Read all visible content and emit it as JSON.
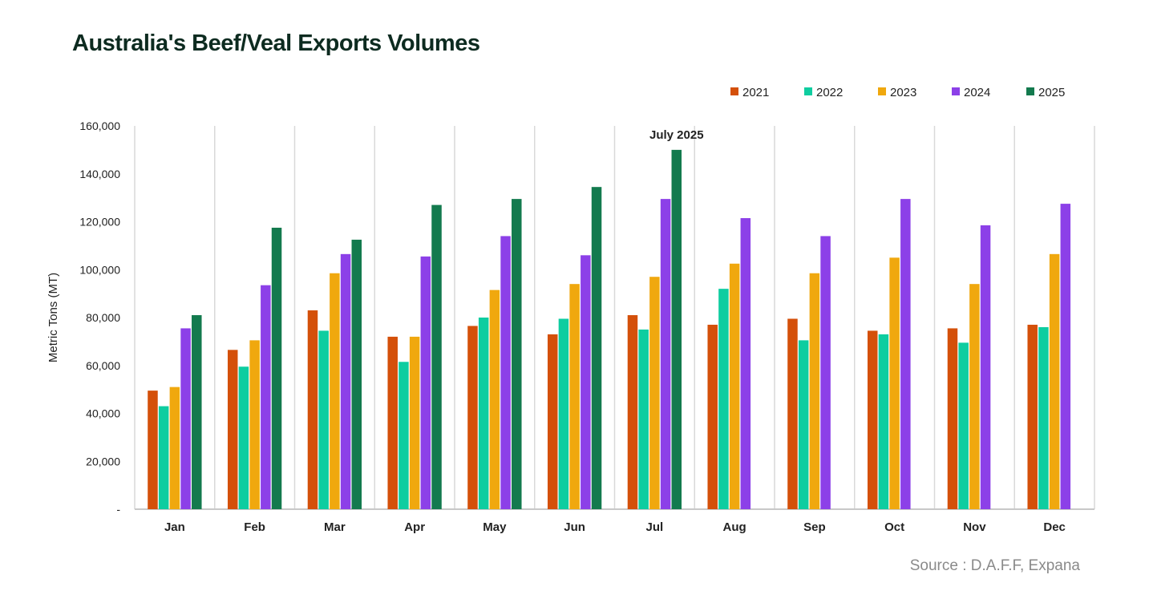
{
  "chart_data": {
    "type": "bar",
    "title": "Australia's Beef/Veal Exports Volumes",
    "ylabel": "Metric Tons (MT)",
    "xlabel": "",
    "ylim": [
      0,
      160000
    ],
    "yticks": [
      0,
      20000,
      40000,
      60000,
      80000,
      100000,
      120000,
      140000,
      160000
    ],
    "ytick_labels": [
      "-",
      "20,000",
      "40,000",
      "60,000",
      "80,000",
      "100,000",
      "120,000",
      "140,000",
      "160,000"
    ],
    "categories": [
      "Jan",
      "Feb",
      "Mar",
      "Apr",
      "May",
      "Jun",
      "Jul",
      "Aug",
      "Sep",
      "Oct",
      "Nov",
      "Dec"
    ],
    "series": [
      {
        "name": "2021",
        "color": "#d4500a",
        "values": [
          49500,
          66500,
          83000,
          72000,
          76500,
          73000,
          81000,
          77000,
          79500,
          74500,
          75500,
          77000
        ]
      },
      {
        "name": "2022",
        "color": "#0ecda0",
        "values": [
          43000,
          59500,
          74500,
          61500,
          80000,
          79500,
          75000,
          92000,
          70500,
          73000,
          69500,
          76000
        ]
      },
      {
        "name": "2023",
        "color": "#f0a80e",
        "values": [
          51000,
          70500,
          98500,
          72000,
          91500,
          94000,
          97000,
          102500,
          98500,
          105000,
          94000,
          106500
        ]
      },
      {
        "name": "2024",
        "color": "#8c40e8",
        "values": [
          75500,
          93500,
          106500,
          105500,
          114000,
          106000,
          129500,
          121500,
          114000,
          129500,
          118500,
          127500
        ]
      },
      {
        "name": "2025",
        "color": "#137a4e",
        "values": [
          81000,
          117500,
          112500,
          127000,
          129500,
          134500,
          150000,
          null,
          null,
          null,
          null,
          null
        ]
      }
    ],
    "annotations": [
      {
        "text": "July 2025",
        "category": "Jul",
        "series": "2025"
      }
    ],
    "legend_position": "top-right",
    "grid": "vertical separators between categories"
  },
  "source": "Source : D.A.F.F, Expana"
}
